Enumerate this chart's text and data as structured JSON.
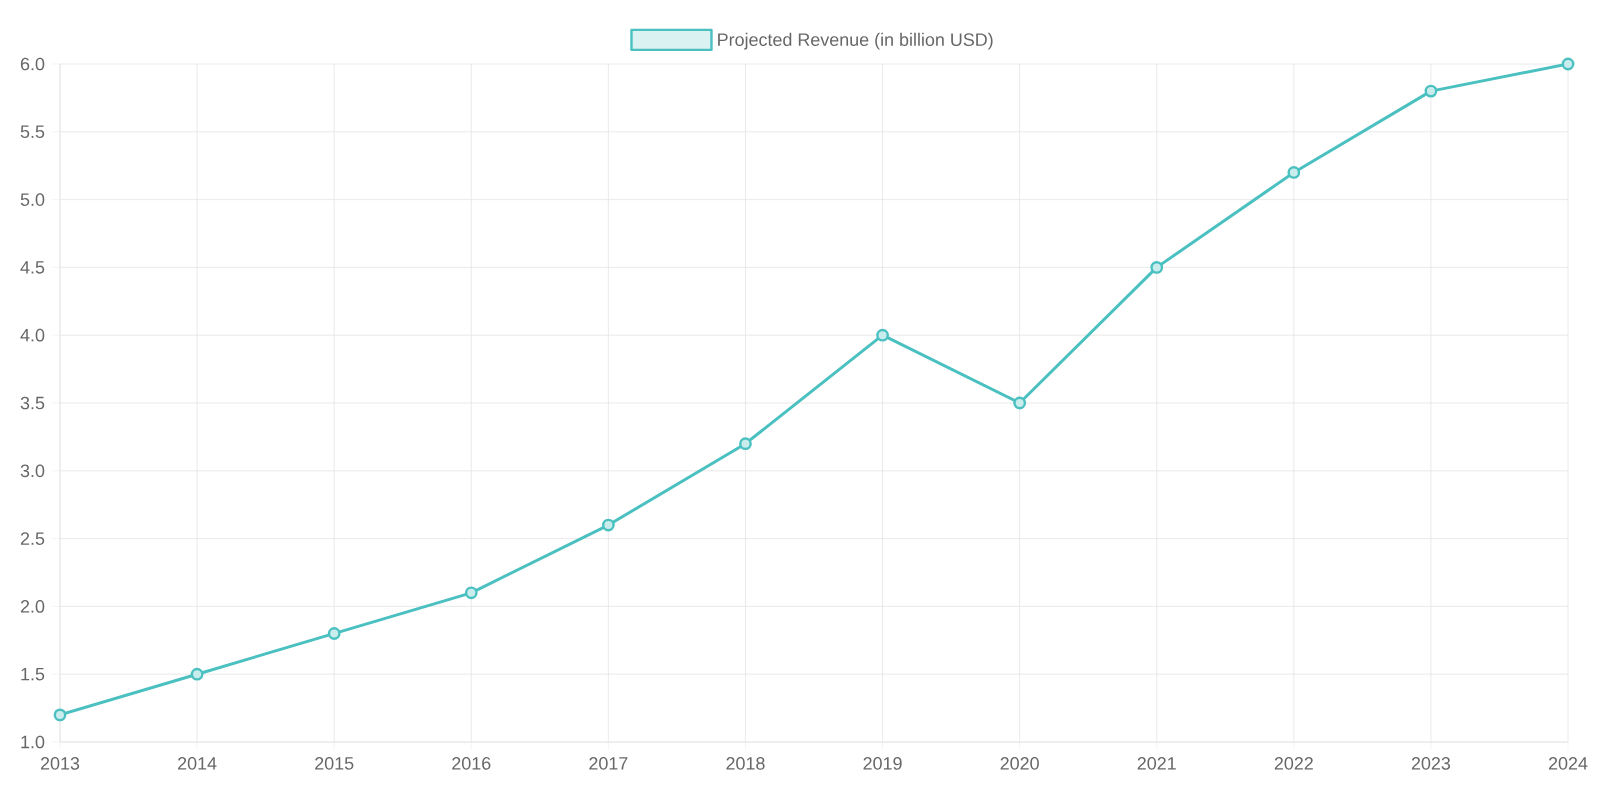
{
  "chart_data": {
    "type": "line",
    "categories": [
      "2013",
      "2014",
      "2015",
      "2016",
      "2017",
      "2018",
      "2019",
      "2020",
      "2021",
      "2022",
      "2023",
      "2024"
    ],
    "series": [
      {
        "name": "Projected Revenue (in billion USD)",
        "color": "#4bc0c0",
        "values": [
          1.2,
          1.5,
          1.8,
          2.1,
          2.6,
          3.2,
          4.0,
          3.5,
          4.5,
          5.2,
          5.8,
          6.0
        ]
      }
    ],
    "ylim": [
      1,
      6
    ],
    "yticks": [
      {
        "value": 1,
        "label": "1.0"
      },
      {
        "value": 1.5,
        "label": "1.5"
      },
      {
        "value": 2,
        "label": "2.0"
      },
      {
        "value": 2.5,
        "label": "2.5"
      },
      {
        "value": 3,
        "label": "3.0"
      },
      {
        "value": 3.5,
        "label": "3.5"
      },
      {
        "value": 4,
        "label": "4.0"
      },
      {
        "value": 4.5,
        "label": "4.5"
      },
      {
        "value": 5,
        "label": "5.0"
      },
      {
        "value": 5.5,
        "label": "5.5"
      },
      {
        "value": 6,
        "label": "6.0"
      }
    ],
    "grid": true,
    "legend": "top",
    "marker": "circle",
    "line_style": "solid"
  }
}
